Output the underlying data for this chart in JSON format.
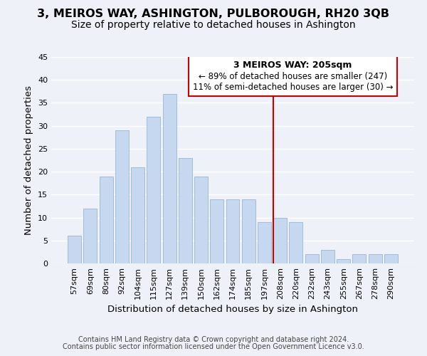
{
  "title": "3, MEIROS WAY, ASHINGTON, PULBOROUGH, RH20 3QB",
  "subtitle": "Size of property relative to detached houses in Ashington",
  "xlabel": "Distribution of detached houses by size in Ashington",
  "ylabel": "Number of detached properties",
  "bar_labels": [
    "57sqm",
    "69sqm",
    "80sqm",
    "92sqm",
    "104sqm",
    "115sqm",
    "127sqm",
    "139sqm",
    "150sqm",
    "162sqm",
    "174sqm",
    "185sqm",
    "197sqm",
    "208sqm",
    "220sqm",
    "232sqm",
    "243sqm",
    "255sqm",
    "267sqm",
    "278sqm",
    "290sqm"
  ],
  "bar_values": [
    6,
    12,
    19,
    29,
    21,
    32,
    37,
    23,
    19,
    14,
    14,
    14,
    9,
    10,
    9,
    2,
    3,
    1,
    2,
    2,
    2
  ],
  "bar_color": "#c5d8f0",
  "bar_edge_color": "#a0bcd8",
  "vline_x_index": 13,
  "vline_color": "#cc0000",
  "annotation_title": "3 MEIROS WAY: 205sqm",
  "annotation_line1": "← 89% of detached houses are smaller (247)",
  "annotation_line2": "11% of semi-detached houses are larger (30) →",
  "annotation_box_edge": "#cc0000",
  "ylim": [
    0,
    45
  ],
  "yticks": [
    0,
    5,
    10,
    15,
    20,
    25,
    30,
    35,
    40,
    45
  ],
  "footnote1": "Contains HM Land Registry data © Crown copyright and database right 2024.",
  "footnote2": "Contains public sector information licensed under the Open Government Licence v3.0.",
  "bg_color": "#eef2f8",
  "grid_color": "#ffffff",
  "title_fontsize": 11.5,
  "subtitle_fontsize": 10,
  "axis_label_fontsize": 9.5,
  "tick_fontsize": 8,
  "footnote_fontsize": 7,
  "ann_title_fontsize": 9,
  "ann_body_fontsize": 8.5
}
